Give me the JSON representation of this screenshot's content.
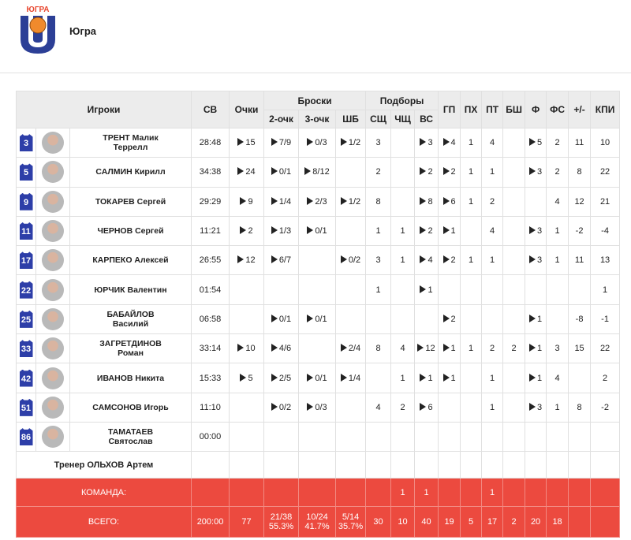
{
  "header": {
    "logo_text": "ЮГРА",
    "team": "Югра"
  },
  "table": {
    "columns": {
      "players": "Игроки",
      "time": "СВ",
      "points": "Очки",
      "shots": "Броски",
      "shots_sub": [
        "2-очк",
        "3-очк",
        "ШБ"
      ],
      "rebounds": "Подборы",
      "rebounds_sub": [
        "СЩ",
        "ЧЩ",
        "ВС"
      ],
      "rest": [
        "ГП",
        "ПХ",
        "ПТ",
        "БШ",
        "Ф",
        "ФС",
        "+/-",
        "КПИ"
      ]
    },
    "rows": [
      {
        "number": 3,
        "name": [
          "ТРЕНТ Малик",
          "Террелл"
        ],
        "stats": [
          "28:48",
          15,
          "7/9",
          "0/3",
          "1/2",
          3,
          null,
          3,
          4,
          1,
          4,
          null,
          5,
          2,
          11,
          10
        ]
      },
      {
        "number": 5,
        "name": [
          "САЛМИН Кирилл"
        ],
        "stats": [
          "34:38",
          24,
          "0/1",
          "8/12",
          null,
          2,
          null,
          2,
          2,
          1,
          1,
          null,
          3,
          2,
          8,
          22
        ]
      },
      {
        "number": 9,
        "name": [
          "ТОКАРЕВ Сергей"
        ],
        "stats": [
          "29:29",
          9,
          "1/4",
          "2/3",
          "1/2",
          8,
          null,
          8,
          6,
          1,
          2,
          null,
          null,
          4,
          12,
          21
        ]
      },
      {
        "number": 11,
        "name": [
          "ЧЕРНОВ Сергей"
        ],
        "stats": [
          "11:21",
          2,
          "1/3",
          "0/1",
          null,
          1,
          1,
          2,
          1,
          null,
          4,
          null,
          3,
          1,
          -2,
          -4
        ]
      },
      {
        "number": 17,
        "name": [
          "КАРПЕКО Алексей"
        ],
        "stats": [
          "26:55",
          12,
          "6/7",
          null,
          "0/2",
          3,
          1,
          4,
          2,
          1,
          1,
          null,
          3,
          1,
          11,
          13
        ]
      },
      {
        "number": 22,
        "name": [
          "ЮРЧИК Валентин"
        ],
        "stats": [
          "01:54",
          null,
          null,
          null,
          null,
          1,
          null,
          1,
          null,
          null,
          null,
          null,
          null,
          null,
          null,
          1
        ]
      },
      {
        "number": 25,
        "name": [
          "БАБАЙЛОВ",
          "Василий"
        ],
        "stats": [
          "06:58",
          null,
          "0/1",
          "0/1",
          null,
          null,
          null,
          null,
          2,
          null,
          null,
          null,
          1,
          null,
          -8,
          -1
        ]
      },
      {
        "number": 33,
        "name": [
          "ЗАГРЕТДИНОВ",
          "Роман"
        ],
        "stats": [
          "33:14",
          10,
          "4/6",
          null,
          "2/4",
          8,
          4,
          12,
          1,
          1,
          2,
          2,
          1,
          3,
          15,
          22
        ]
      },
      {
        "number": 42,
        "name": [
          "ИВАНОВ Никита"
        ],
        "stats": [
          "15:33",
          5,
          "2/5",
          "0/1",
          "1/4",
          null,
          1,
          1,
          1,
          null,
          1,
          null,
          1,
          4,
          null,
          2
        ]
      },
      {
        "number": 51,
        "name": [
          "САМСОНОВ Игорь"
        ],
        "stats": [
          "11:10",
          null,
          "0/2",
          "0/3",
          null,
          4,
          2,
          6,
          null,
          null,
          1,
          null,
          3,
          1,
          8,
          -2
        ]
      },
      {
        "number": 86,
        "name": [
          "ТАМАТАЕВ",
          "Святослав"
        ],
        "stats": [
          "00:00",
          null,
          null,
          null,
          null,
          null,
          null,
          null,
          null,
          null,
          null,
          null,
          null,
          null,
          null,
          null
        ]
      }
    ],
    "coach": "Тренер ОЛЬХОВ Артем",
    "team_row": {
      "label": "КОМАНДА:",
      "stats": [
        null,
        null,
        null,
        null,
        null,
        null,
        1,
        1,
        null,
        null,
        1,
        null,
        null,
        null,
        null,
        null
      ]
    },
    "total": {
      "label": "ВСЕГО:",
      "stats": [
        "200:00",
        77,
        [
          "21/38",
          "55.3%"
        ],
        [
          "10/24",
          "41.7%"
        ],
        [
          "5/14",
          "35.7%"
        ],
        30,
        10,
        40,
        19,
        5,
        17,
        2,
        20,
        18,
        null,
        null
      ]
    }
  }
}
